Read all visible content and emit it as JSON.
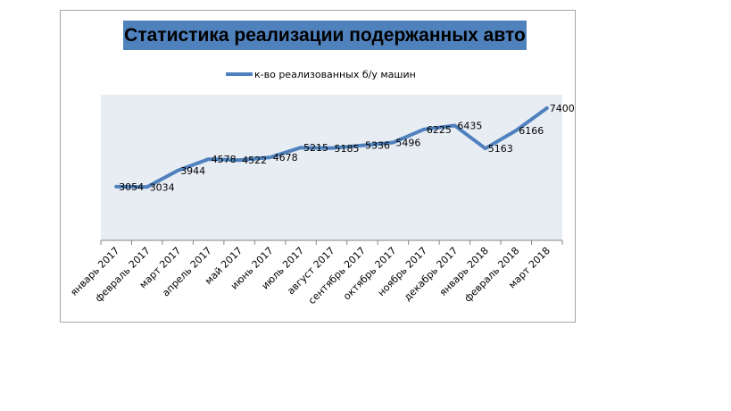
{
  "chart_data": {
    "type": "line",
    "title": "Статистика реализации подержанных авто",
    "xlabel": "",
    "ylabel": "",
    "categories": [
      "январь 2017",
      "февраль 2017",
      "март 2017",
      "апрель 2017",
      "май 2017",
      "июнь 2017",
      "июль 2017",
      "август 2017",
      "сентябрь 2017",
      "октябрь 2017",
      "ноябрь 2017",
      "декабрь 2017",
      "январь 2018",
      "февраль 2018",
      "март 2018"
    ],
    "series": [
      {
        "name": "к-во реализованных б/у машин",
        "color": "#4f81bd",
        "values": [
          3054,
          3034,
          3944,
          4578,
          4522,
          4678,
          5215,
          5185,
          5336,
          5496,
          6225,
          6435,
          5163,
          6166,
          7400
        ]
      }
    ],
    "legend_position": "top",
    "grid": false,
    "plot_area_color": "#e8edf4"
  }
}
